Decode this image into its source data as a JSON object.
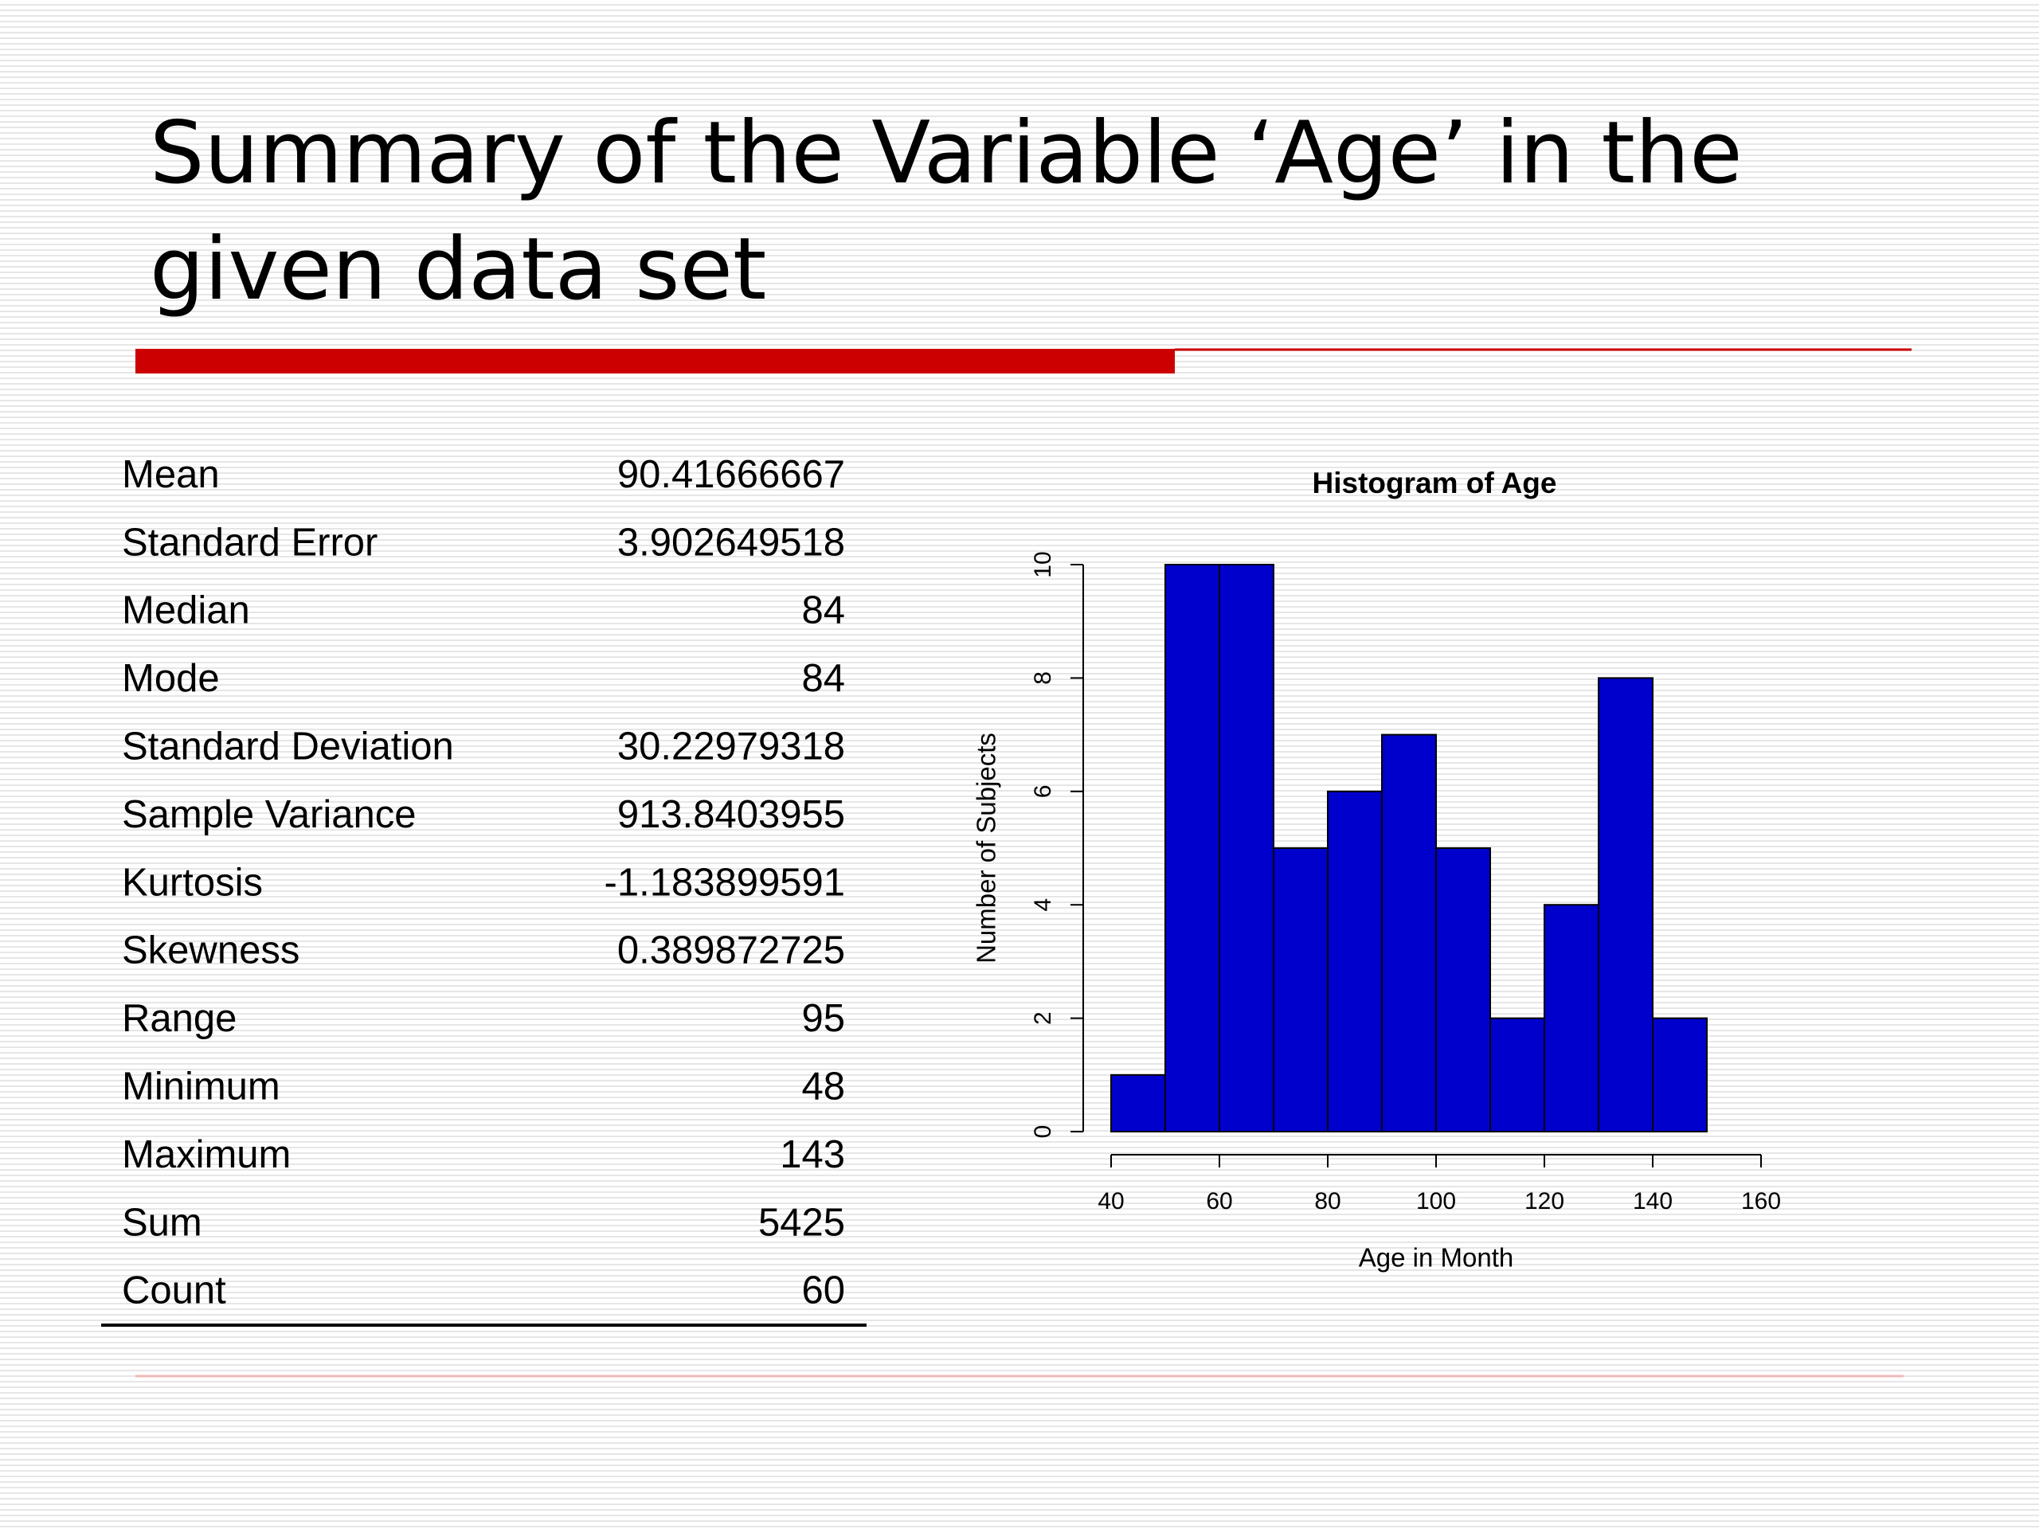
{
  "title": "Summary of the Variable ‘Age’ in the given data set",
  "table": {
    "rows": [
      [
        "Mean",
        "90.41666667"
      ],
      [
        "Standard Error",
        "3.902649518"
      ],
      [
        "Median",
        "84"
      ],
      [
        "Mode",
        "84"
      ],
      [
        "Standard Deviation",
        "30.22979318"
      ],
      [
        "Sample Variance",
        "913.8403955"
      ],
      [
        "Kurtosis",
        "-1.183899591"
      ],
      [
        "Skewness",
        "0.389872725"
      ],
      [
        "Range",
        "95"
      ],
      [
        "Minimum",
        "48"
      ],
      [
        "Maximum",
        "143"
      ],
      [
        "Sum",
        "5425"
      ],
      [
        "Count",
        "60"
      ]
    ]
  },
  "chart_data": {
    "type": "histogram",
    "title": "Histogram of Age",
    "x_label": "Age in Month",
    "y_label": "Number of Subjects",
    "bins": [
      40,
      50,
      60,
      70,
      80,
      90,
      100,
      110,
      120,
      130,
      140,
      150
    ],
    "values": [
      1,
      10,
      10,
      5,
      6,
      7,
      5,
      2,
      4,
      8,
      2
    ],
    "color": "#0000cc",
    "xlim": [
      40,
      160
    ],
    "xticks": [
      40,
      60,
      80,
      100,
      120,
      140,
      160
    ],
    "ylim": [
      0,
      10
    ],
    "yticks": [
      0,
      2,
      4,
      6,
      8,
      10
    ]
  }
}
